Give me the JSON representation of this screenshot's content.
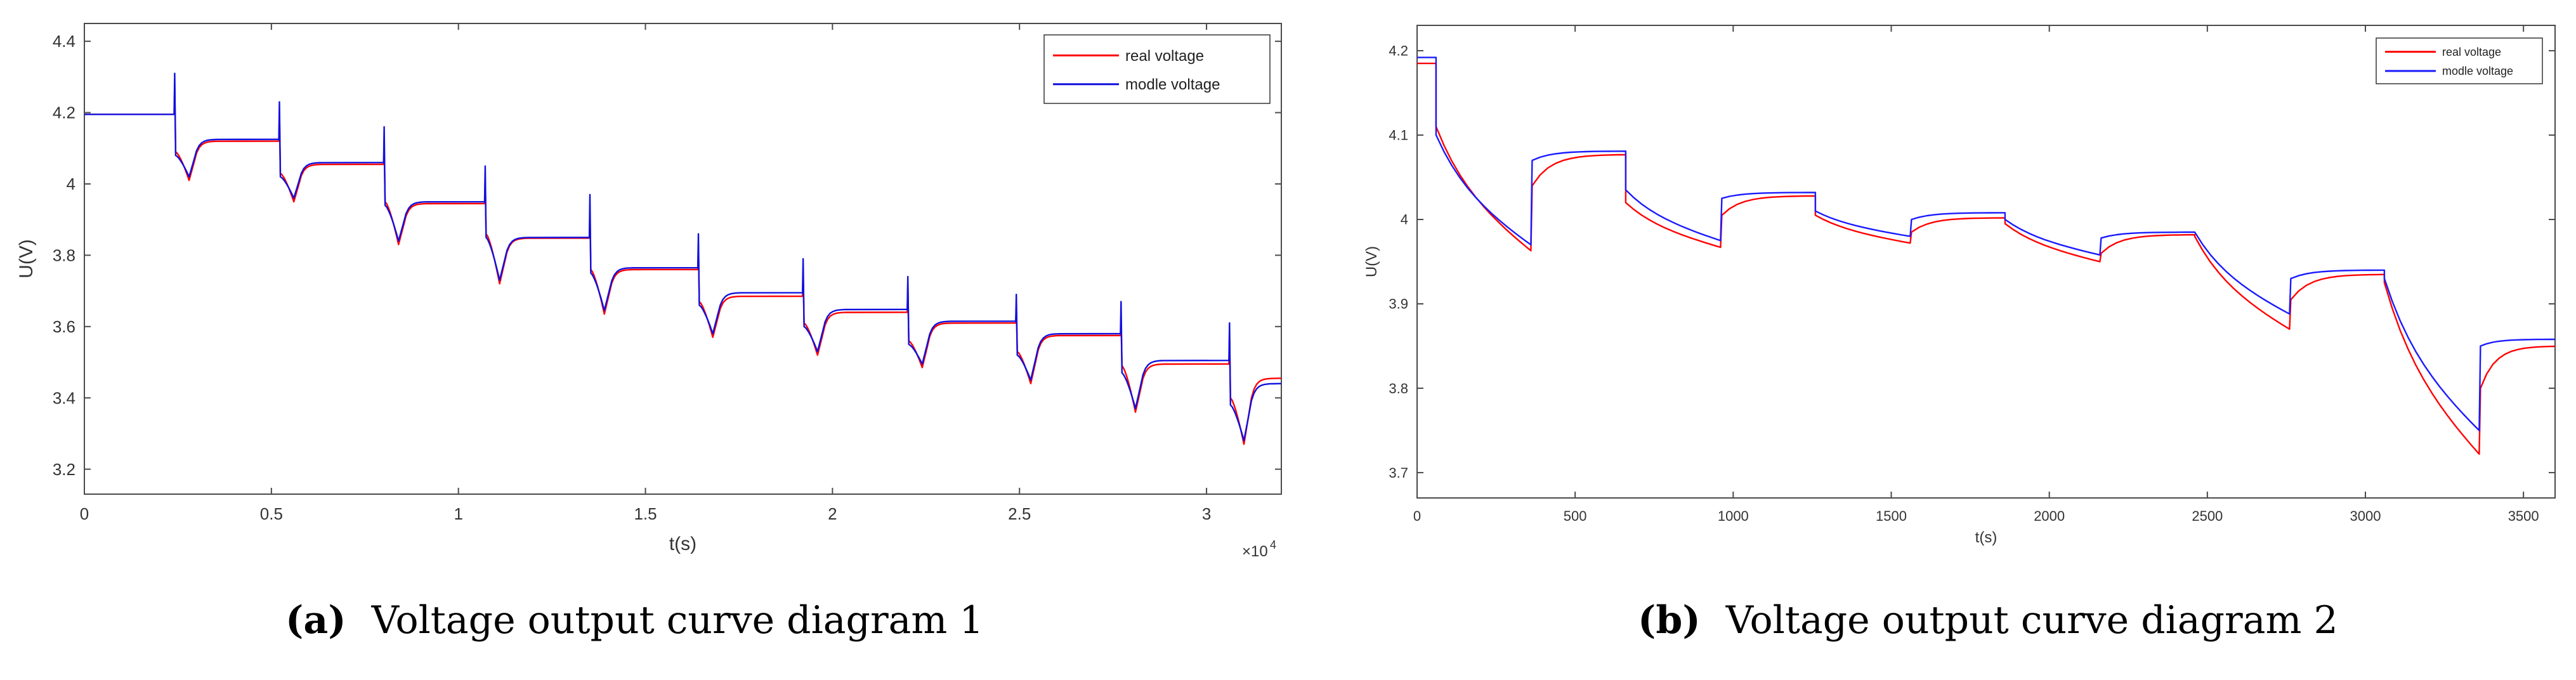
{
  "chart_data": [
    {
      "type": "line",
      "panel_label": "(a)",
      "caption": "Voltage output curve diagram 1",
      "xlabel": "t(s)",
      "ylabel": "U(V)",
      "x_multiplier_label": "×10",
      "x_multiplier_exp": "4",
      "xlim": [
        0,
        32000
      ],
      "ylim": [
        3.13,
        4.45
      ],
      "xticks": [
        0,
        5000,
        10000,
        15000,
        20000,
        25000,
        30000
      ],
      "xtick_labels": [
        "0",
        "0.5",
        "1",
        "1.5",
        "2",
        "2.5",
        "3"
      ],
      "yticks": [
        3.2,
        3.4,
        3.6,
        3.8,
        4.0,
        4.2,
        4.4
      ],
      "ytick_labels": [
        "3.2",
        "3.4",
        "3.6",
        "3.8",
        "4",
        "4.2",
        "4.4"
      ],
      "legend_position": "top-right",
      "pulse_starts": [
        2400,
        5200,
        8000,
        10700,
        13500,
        16400,
        19200,
        22000,
        24900,
        27700,
        30600
      ],
      "pulse_duration": 400,
      "series": [
        {
          "name": "real voltage",
          "color": "#ff0000",
          "rest_levels": [
            4.195,
            4.12,
            4.055,
            3.945,
            3.848,
            3.76,
            3.685,
            3.64,
            3.61,
            3.575,
            3.495,
            3.455
          ],
          "drop_end": [
            4.01,
            3.95,
            3.83,
            3.72,
            3.635,
            3.57,
            3.52,
            3.485,
            3.44,
            3.36,
            3.27
          ],
          "spike_peak": [
            4.27,
            4.2,
            4.12,
            4.02,
            3.92,
            3.83,
            3.76,
            3.72,
            3.66,
            3.62,
            3.58
          ],
          "dip_value": [
            4.09,
            4.03,
            3.95,
            3.86,
            3.76,
            3.67,
            3.61,
            3.56,
            3.53,
            3.49,
            3.4
          ]
        },
        {
          "name": "modle voltage",
          "color": "#1010e0",
          "rest_levels": [
            4.195,
            4.125,
            4.06,
            3.95,
            3.85,
            3.765,
            3.695,
            3.648,
            3.615,
            3.58,
            3.505,
            3.44
          ],
          "drop_end": [
            4.02,
            3.96,
            3.84,
            3.73,
            3.645,
            3.58,
            3.53,
            3.495,
            3.45,
            3.37,
            3.28
          ],
          "spike_peak": [
            4.31,
            4.23,
            4.16,
            4.05,
            3.97,
            3.86,
            3.79,
            3.74,
            3.69,
            3.67,
            3.61
          ],
          "dip_value": [
            4.08,
            4.02,
            3.94,
            3.85,
            3.75,
            3.66,
            3.6,
            3.55,
            3.52,
            3.47,
            3.38
          ]
        }
      ]
    },
    {
      "type": "line",
      "panel_label": "(b)",
      "caption": "Voltage output curve diagram 2",
      "xlabel": "t(s)",
      "ylabel": "U(V)",
      "xlim": [
        0,
        3600
      ],
      "ylim": [
        3.67,
        4.23
      ],
      "xticks": [
        0,
        500,
        1000,
        1500,
        2000,
        2500,
        3000,
        3500
      ],
      "xtick_labels": [
        "0",
        "500",
        "1000",
        "1500",
        "2000",
        "2500",
        "3000",
        "3500"
      ],
      "yticks": [
        3.7,
        3.8,
        3.9,
        4.0,
        4.1,
        4.2
      ],
      "ytick_labels": [
        "3.7",
        "3.8",
        "3.9",
        "4",
        "4.1",
        "4.2"
      ],
      "legend_position": "top-right",
      "step_times": [
        60,
        360,
        660,
        960,
        1260,
        1560,
        1860,
        2160,
        2460,
        2760,
        3060,
        3360
      ],
      "series": [
        {
          "name": "real voltage",
          "color": "#ff0000",
          "initial": 4.185,
          "discharge_start": [
            4.11,
            4.02,
            4.005,
            3.995,
            3.98,
            3.925,
            3.83
          ],
          "discharge_end": [
            3.963,
            3.967,
            3.972,
            3.95,
            3.87,
            3.722
          ],
          "discharge_end_last": 3.722,
          "rest_end": [
            4.077,
            4.028,
            4.002,
            3.982,
            3.935,
            3.85
          ],
          "rest_start": [
            4.04,
            4.005,
            3.985,
            3.96,
            3.905,
            3.8
          ]
        },
        {
          "name": "modle voltage",
          "color": "#1a1aff",
          "initial": 4.192,
          "discharge_start": [
            4.1,
            4.035,
            4.01,
            4.0,
            3.985,
            3.93,
            3.84
          ],
          "discharge_end": [
            3.97,
            3.975,
            3.98,
            3.958,
            3.888,
            3.75
          ],
          "discharge_end_last": 3.75,
          "rest_end": [
            4.081,
            4.032,
            4.008,
            3.985,
            3.94,
            3.858
          ],
          "rest_start": [
            4.07,
            4.025,
            4.0,
            3.978,
            3.93,
            3.85
          ]
        }
      ]
    }
  ]
}
